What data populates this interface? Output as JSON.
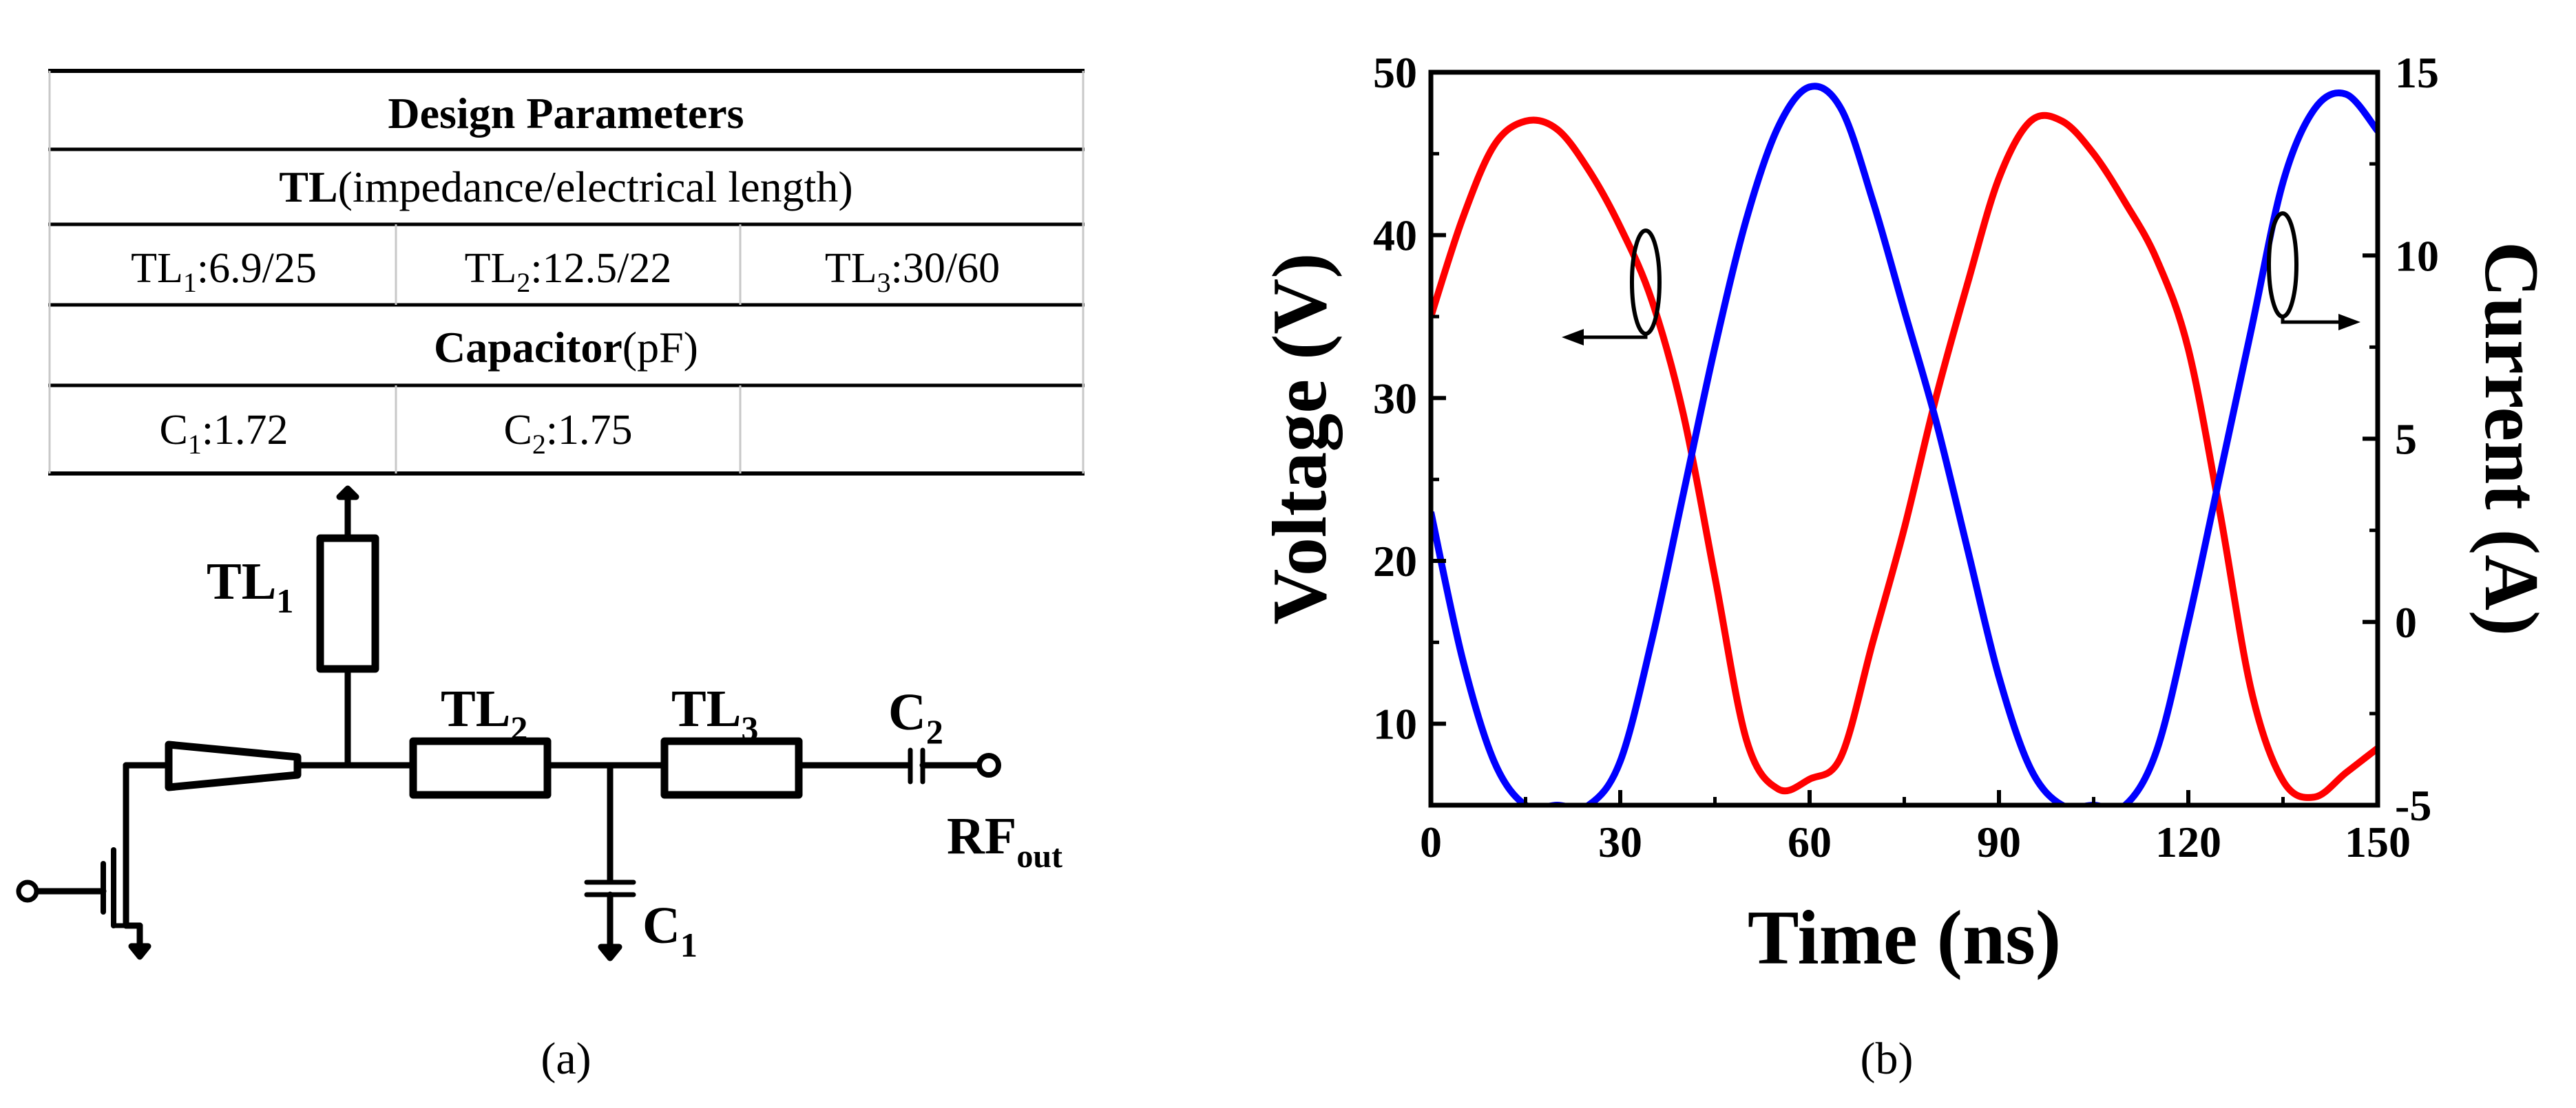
{
  "panel_a": {
    "table": {
      "title": "Design Parameters",
      "tl_head_bold": "TL",
      "tl_head_rest": "(impedance/electrical length)",
      "tl_cells": [
        {
          "base": "TL",
          "sub": "1",
          "value": ":6.9/25"
        },
        {
          "base": "TL",
          "sub": "2",
          "value": ":12.5/22"
        },
        {
          "base": "TL",
          "sub": "3",
          "value": ":30/60"
        }
      ],
      "cap_head_bold": "Capacitor",
      "cap_head_rest": "(pF)",
      "cap_cells": [
        {
          "base": "C",
          "sub": "1",
          "value": ":1.72"
        },
        {
          "base": "C",
          "sub": "2",
          "value": ":1.75"
        }
      ]
    },
    "circuit": {
      "tl1": {
        "base": "TL",
        "sub": "1"
      },
      "tl2": {
        "base": "TL",
        "sub": "2"
      },
      "tl3": {
        "base": "TL",
        "sub": "3"
      },
      "c1": {
        "base": "C",
        "sub": "1"
      },
      "c2": {
        "base": "C",
        "sub": "2"
      },
      "rf": {
        "base": "RF",
        "sub": "out"
      }
    },
    "caption": "(a)"
  },
  "panel_b": {
    "caption": "(b)"
  },
  "chart_data": {
    "type": "line",
    "xlabel": "Time (ns)",
    "ylabel": "Voltage (V)",
    "y2label": "Current (A)",
    "xlim": [
      0,
      150
    ],
    "ylim": [
      5,
      50
    ],
    "y2lim": [
      -5,
      15
    ],
    "xticks": [
      0,
      30,
      60,
      90,
      120,
      150
    ],
    "yticks": [
      10,
      20,
      30,
      40,
      50
    ],
    "y2ticks": [
      -5,
      0,
      5,
      10,
      15
    ],
    "series": [
      {
        "name": "Voltage",
        "axis": "left",
        "color": "#ff0000",
        "x": [
          0,
          5,
          10,
          15,
          20,
          25,
          30,
          35,
          40,
          45,
          50,
          55,
          60,
          65,
          70,
          75,
          80,
          85,
          90,
          95,
          100,
          105,
          110,
          115,
          120,
          125,
          130,
          135,
          140,
          145,
          150
        ],
        "y": [
          35,
          41,
          45.5,
          47,
          46.5,
          44,
          40.5,
          36,
          29,
          19,
          9,
          6,
          6.6,
          8,
          15,
          22,
          30,
          37,
          43.5,
          47,
          47,
          45,
          42,
          38.5,
          33,
          23,
          12,
          6.5,
          5.5,
          7,
          8.5
        ]
      },
      {
        "name": "Current",
        "axis": "right",
        "color": "#0000ff",
        "x": [
          0,
          5,
          10,
          15,
          20,
          25,
          30,
          35,
          40,
          45,
          50,
          55,
          60,
          65,
          70,
          75,
          80,
          85,
          90,
          95,
          100,
          105,
          110,
          115,
          120,
          125,
          130,
          135,
          140,
          145,
          150
        ],
        "y": [
          3,
          -1,
          -3.8,
          -5,
          -5,
          -5,
          -3.8,
          -0.5,
          3.5,
          7.5,
          11,
          13.5,
          14.6,
          14,
          11.5,
          8.5,
          5.5,
          2,
          -1.5,
          -4,
          -5,
          -5,
          -5,
          -3.5,
          0,
          4,
          8,
          12,
          14,
          14.4,
          13.4
        ]
      }
    ],
    "annotations": [
      {
        "target": "Voltage",
        "arrow": "left"
      },
      {
        "target": "Current",
        "arrow": "right"
      }
    ]
  }
}
